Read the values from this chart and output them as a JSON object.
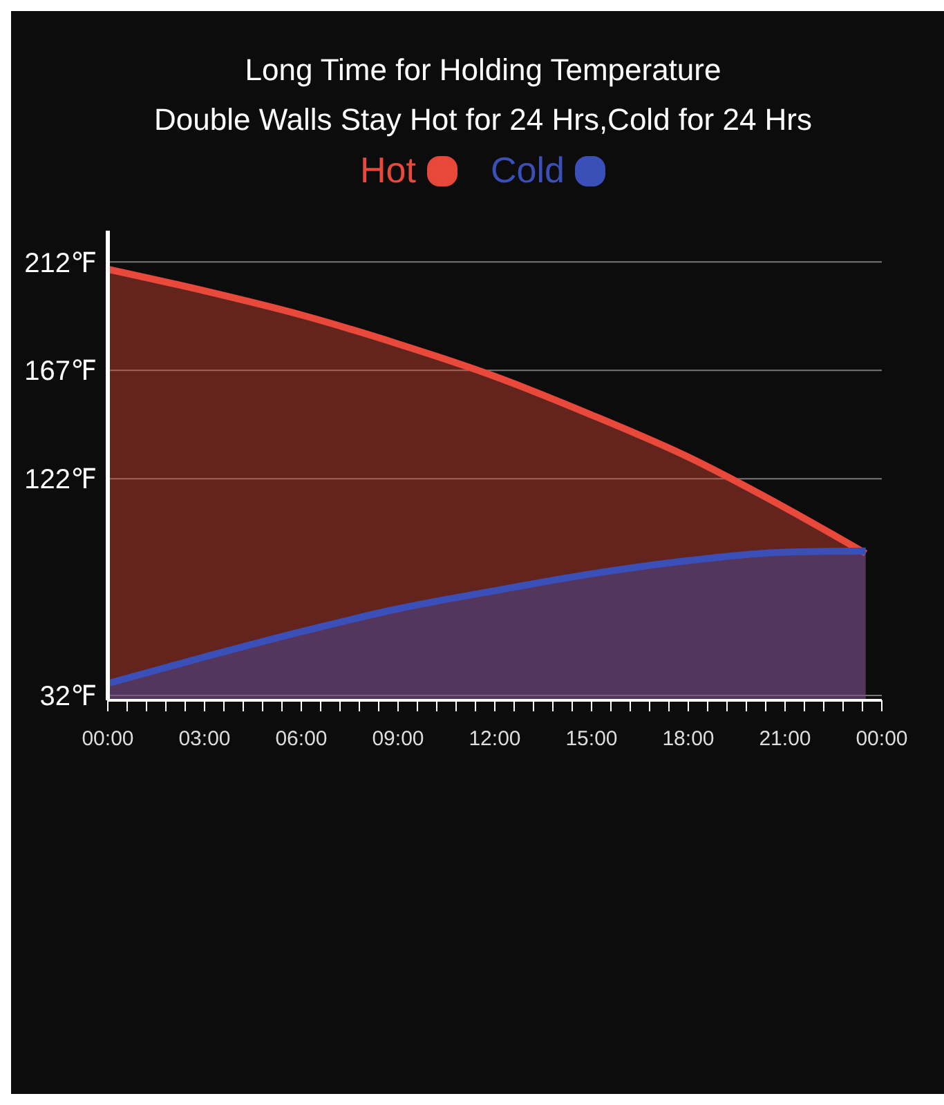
{
  "chart_data": {
    "type": "area",
    "title": "Long Time for Holding Temperature",
    "subtitle": "Double Walls Stay Hot for 24 Hrs,Cold for 24 Hrs",
    "x": [
      0,
      3,
      6,
      9,
      12,
      15,
      18,
      21,
      23.5
    ],
    "series": [
      {
        "name": "Hot",
        "color": "#e8493a",
        "values": [
          209,
          200,
          190,
          178,
          164.5,
          148.5,
          131,
          110,
          91
        ]
      },
      {
        "name": "Cold",
        "color": "#3b4fb8",
        "values": [
          37,
          48,
          58.5,
          68,
          75.5,
          82.5,
          88,
          91.5,
          92
        ]
      }
    ],
    "xlim": [
      0,
      24
    ],
    "xticks": [
      {
        "value": 0,
        "label": "00:00"
      },
      {
        "value": 0.6,
        "label": null
      },
      {
        "value": 1.2,
        "label": null
      },
      {
        "value": 1.8,
        "label": null
      },
      {
        "value": 2.4,
        "label": null
      },
      {
        "value": 3,
        "label": "03:00"
      },
      {
        "value": 3.6,
        "label": null
      },
      {
        "value": 4.2,
        "label": null
      },
      {
        "value": 4.8,
        "label": null
      },
      {
        "value": 5.4,
        "label": null
      },
      {
        "value": 6,
        "label": "06:00"
      },
      {
        "value": 6.6,
        "label": null
      },
      {
        "value": 7.2,
        "label": null
      },
      {
        "value": 7.8,
        "label": null
      },
      {
        "value": 8.4,
        "label": null
      },
      {
        "value": 9,
        "label": "09:00"
      },
      {
        "value": 9.6,
        "label": null
      },
      {
        "value": 10.2,
        "label": null
      },
      {
        "value": 10.8,
        "label": null
      },
      {
        "value": 11.4,
        "label": null
      },
      {
        "value": 12,
        "label": "12:00"
      },
      {
        "value": 12.6,
        "label": null
      },
      {
        "value": 13.2,
        "label": null
      },
      {
        "value": 13.8,
        "label": null
      },
      {
        "value": 14.4,
        "label": null
      },
      {
        "value": 15,
        "label": "15:00"
      },
      {
        "value": 15.6,
        "label": null
      },
      {
        "value": 16.2,
        "label": null
      },
      {
        "value": 16.8,
        "label": null
      },
      {
        "value": 17.4,
        "label": null
      },
      {
        "value": 18,
        "label": "18:00"
      },
      {
        "value": 18.6,
        "label": null
      },
      {
        "value": 19.2,
        "label": null
      },
      {
        "value": 19.8,
        "label": null
      },
      {
        "value": 20.4,
        "label": null
      },
      {
        "value": 21,
        "label": "21:00"
      },
      {
        "value": 21.6,
        "label": null
      },
      {
        "value": 22.2,
        "label": null
      },
      {
        "value": 22.8,
        "label": null
      },
      {
        "value": 23.4,
        "label": null
      },
      {
        "value": 24,
        "label": "00:00"
      }
    ],
    "ylim": [
      30,
      225
    ],
    "yticks": [
      {
        "value": 32,
        "label": "32℉"
      },
      {
        "value": 122,
        "label": "122℉"
      },
      {
        "value": 167,
        "label": "167℉"
      },
      {
        "value": 212,
        "label": "212℉"
      }
    ],
    "grid": "y",
    "legend": "top",
    "marker": "none",
    "line_style": "solid"
  }
}
